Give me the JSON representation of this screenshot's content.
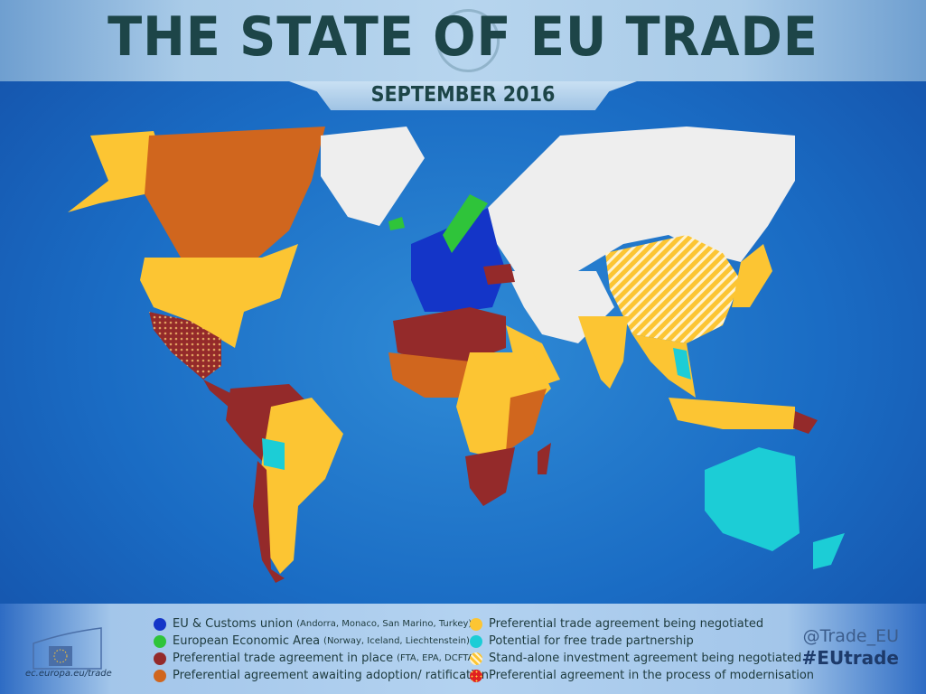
{
  "header": {
    "title": "THE STATE OF EU TRADE",
    "date": "SEPTEMBER 2016"
  },
  "colors": {
    "eu_customs": "#1435c8",
    "eea": "#2fc43a",
    "fta_in_place": "#942a2a",
    "awaiting_adoption": "#d0661e",
    "being_negotiated": "#fcc533",
    "potential_fta": "#1ccdd6",
    "investment_negotiated": "#fcc533",
    "modernisation": "#e02020",
    "no_agreement": "#eeeeee",
    "ocean": "#1f72c9"
  },
  "legend": {
    "left": [
      {
        "label": "EU & Customs union",
        "note": "(Andorra, Monaco, San Marino, Turkey)",
        "color": "#1435c8"
      },
      {
        "label": "European Economic Area",
        "note": "(Norway, Iceland, Liechtenstein)",
        "color": "#2fc43a"
      },
      {
        "label": "Preferential trade agreement in place",
        "note": "(FTA, EPA, DCFTA)",
        "color": "#942a2a"
      },
      {
        "label": "Preferential agreement awaiting adoption/ ratification",
        "note": "",
        "color": "#d0661e"
      }
    ],
    "right": [
      {
        "label": "Preferential trade agreement being negotiated",
        "note": "",
        "color": "#fcc533"
      },
      {
        "label": "Potential for free trade partnership",
        "note": "",
        "color": "#1ccdd6"
      },
      {
        "label": "Stand-alone investment agreement being negotiated",
        "note": "",
        "color": "hatched-yellow"
      },
      {
        "label": "Preferential agreement in the process of modernisation",
        "note": "",
        "color": "dotted-red"
      }
    ]
  },
  "footer": {
    "logo_url_text": "ec.europa.eu/trade",
    "twitter": "@Trade_EU",
    "hashtag": "#EUtrade"
  }
}
